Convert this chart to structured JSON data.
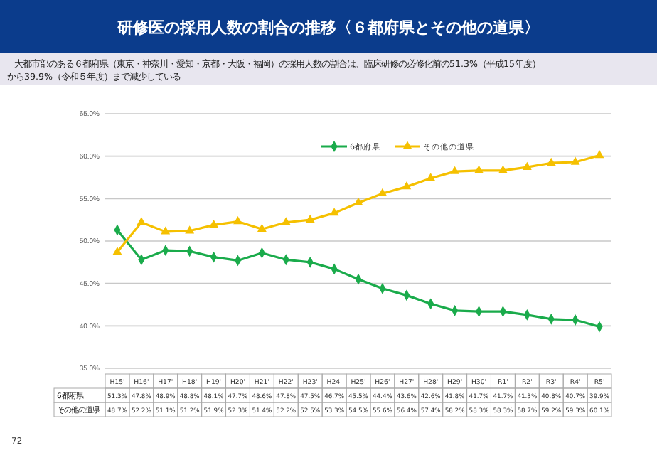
{
  "chart_data": {
    "type": "line",
    "title": "研修医の採用人数の割合の推移〈６都府県とその他の道県〉",
    "subtitle": "大都市部のある６都府県（東京・神奈川・愛知・京都・大阪・福岡）の採用人数の割合は、臨床研修の必修化前の51.3%（平成15年度）から39.9%（令和５年度）まで減少している",
    "categories": [
      "H15'",
      "H16'",
      "H17'",
      "H18'",
      "H19'",
      "H20'",
      "H21'",
      "H22'",
      "H23'",
      "H24'",
      "H25'",
      "H26'",
      "H27'",
      "H28'",
      "H29'",
      "H30'",
      "R1'",
      "R2'",
      "R3'",
      "R4'",
      "R5'"
    ],
    "series": [
      {
        "name": "6都府県",
        "color": "#1aab4b",
        "marker": "diamond",
        "values": [
          51.3,
          47.8,
          48.9,
          48.8,
          48.1,
          47.7,
          48.6,
          47.8,
          47.5,
          46.7,
          45.5,
          44.4,
          43.6,
          42.6,
          41.8,
          41.7,
          41.7,
          41.3,
          40.8,
          40.7,
          39.9
        ],
        "value_labels": [
          "51.3%",
          "47.8%",
          "48.9%",
          "48.8%",
          "48.1%",
          "47.7%",
          "48.6%",
          "47.8%",
          "47.5%",
          "46.7%",
          "45.5%",
          "44.4%",
          "43.6%",
          "42.6%",
          "41.8%",
          "41.7%",
          "41.7%",
          "41.3%",
          "40.8%",
          "40.7%",
          "39.9%"
        ]
      },
      {
        "name": "その他の道県",
        "color": "#f5c000",
        "marker": "triangle",
        "values": [
          48.7,
          52.2,
          51.1,
          51.2,
          51.9,
          52.3,
          51.4,
          52.2,
          52.5,
          53.3,
          54.5,
          55.6,
          56.4,
          57.4,
          58.2,
          58.3,
          58.3,
          58.7,
          59.2,
          59.3,
          60.1
        ],
        "value_labels": [
          "48.7%",
          "52.2%",
          "51.1%",
          "51.2%",
          "51.9%",
          "52.3%",
          "51.4%",
          "52.2%",
          "52.5%",
          "53.3%",
          "54.5%",
          "55.6%",
          "56.4%",
          "57.4%",
          "58.2%",
          "58.3%",
          "58.3%",
          "58.7%",
          "59.2%",
          "59.3%",
          "60.1%"
        ]
      }
    ],
    "ylim": [
      35,
      65
    ],
    "yticks": [
      {
        "value": 35,
        "label": "35.0%"
      },
      {
        "value": 40,
        "label": "40.0%"
      },
      {
        "value": 45,
        "label": "45.0%"
      },
      {
        "value": 50,
        "label": "50.0%"
      },
      {
        "value": 55,
        "label": "55.0%"
      },
      {
        "value": 60,
        "label": "60.0%"
      },
      {
        "value": 65,
        "label": "65.0%"
      }
    ],
    "grid": "y",
    "legend": "top",
    "annotations": [
      "72"
    ]
  }
}
